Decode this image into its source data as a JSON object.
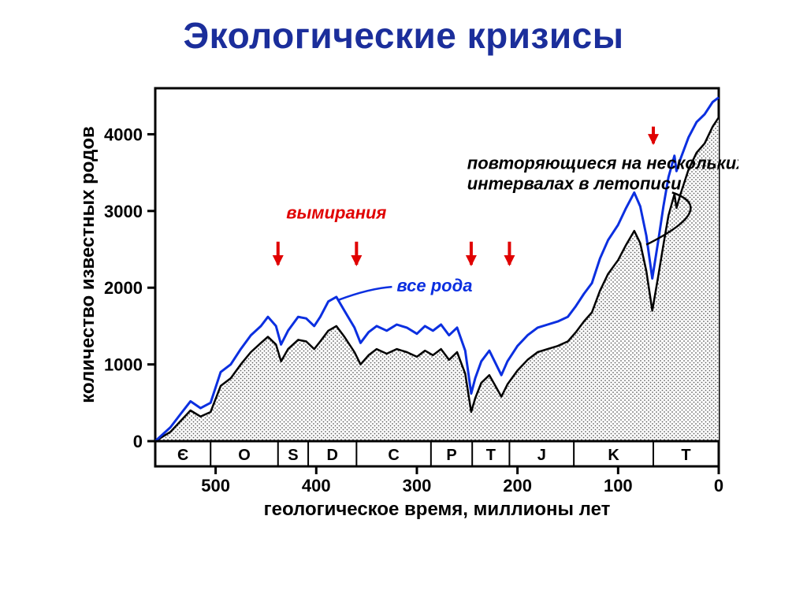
{
  "title": "Экологические кризисы",
  "axes": {
    "x_label": "геологическое время, миллионы лет",
    "y_label": "количество известных родов",
    "x_ticks": [
      500,
      400,
      300,
      200,
      100,
      0
    ],
    "y_ticks": [
      0,
      1000,
      2000,
      3000,
      4000
    ],
    "x_domain_min": 560,
    "x_domain_max": 0,
    "y_domain_min": 0,
    "y_domain_max": 4600,
    "axis_color": "#000000",
    "axis_line_width": 3
  },
  "periods": [
    {
      "label": "Є",
      "start": 560,
      "end": 505
    },
    {
      "label": "O",
      "start": 505,
      "end": 438
    },
    {
      "label": "S",
      "start": 438,
      "end": 408
    },
    {
      "label": "D",
      "start": 408,
      "end": 360
    },
    {
      "label": "C",
      "start": 360,
      "end": 286
    },
    {
      "label": "P",
      "start": 286,
      "end": 245
    },
    {
      "label": "T",
      "start": 245,
      "end": 208
    },
    {
      "label": "J",
      "start": 208,
      "end": 144
    },
    {
      "label": "K",
      "start": 144,
      "end": 65
    },
    {
      "label": "T",
      "start": 65,
      "end": 0
    }
  ],
  "series_all": {
    "label": "все рода",
    "color": "#0b2fe0",
    "line_width": 3,
    "points": [
      [
        560,
        0
      ],
      [
        545,
        180
      ],
      [
        535,
        350
      ],
      [
        525,
        520
      ],
      [
        515,
        430
      ],
      [
        505,
        500
      ],
      [
        495,
        900
      ],
      [
        485,
        1000
      ],
      [
        475,
        1200
      ],
      [
        465,
        1380
      ],
      [
        455,
        1500
      ],
      [
        448,
        1620
      ],
      [
        440,
        1500
      ],
      [
        435,
        1260
      ],
      [
        428,
        1440
      ],
      [
        418,
        1620
      ],
      [
        410,
        1600
      ],
      [
        402,
        1500
      ],
      [
        396,
        1620
      ],
      [
        388,
        1820
      ],
      [
        380,
        1880
      ],
      [
        372,
        1700
      ],
      [
        362,
        1480
      ],
      [
        356,
        1280
      ],
      [
        348,
        1420
      ],
      [
        340,
        1500
      ],
      [
        330,
        1440
      ],
      [
        320,
        1520
      ],
      [
        310,
        1480
      ],
      [
        300,
        1400
      ],
      [
        292,
        1500
      ],
      [
        284,
        1440
      ],
      [
        276,
        1520
      ],
      [
        268,
        1380
      ],
      [
        260,
        1480
      ],
      [
        252,
        1180
      ],
      [
        246,
        620
      ],
      [
        242,
        820
      ],
      [
        236,
        1040
      ],
      [
        228,
        1180
      ],
      [
        222,
        1020
      ],
      [
        216,
        860
      ],
      [
        210,
        1040
      ],
      [
        200,
        1240
      ],
      [
        190,
        1380
      ],
      [
        180,
        1480
      ],
      [
        170,
        1520
      ],
      [
        160,
        1560
      ],
      [
        150,
        1620
      ],
      [
        142,
        1760
      ],
      [
        134,
        1920
      ],
      [
        126,
        2060
      ],
      [
        118,
        2380
      ],
      [
        110,
        2620
      ],
      [
        100,
        2820
      ],
      [
        92,
        3040
      ],
      [
        84,
        3240
      ],
      [
        78,
        3060
      ],
      [
        72,
        2680
      ],
      [
        66,
        2120
      ],
      [
        60,
        2620
      ],
      [
        55,
        3060
      ],
      [
        50,
        3440
      ],
      [
        44,
        3720
      ],
      [
        42,
        3520
      ],
      [
        38,
        3680
      ],
      [
        30,
        3960
      ],
      [
        22,
        4160
      ],
      [
        14,
        4260
      ],
      [
        6,
        4420
      ],
      [
        0,
        4480
      ]
    ]
  },
  "series_repeat": {
    "label": "повторяющиеся на нескольких интервалах в летописи",
    "line_color": "#000000",
    "fill_pattern": "dots",
    "fill_fg": "#606060",
    "fill_bg": "#ffffff",
    "line_width": 2.5,
    "points": [
      [
        560,
        0
      ],
      [
        545,
        120
      ],
      [
        535,
        260
      ],
      [
        525,
        400
      ],
      [
        515,
        320
      ],
      [
        505,
        380
      ],
      [
        495,
        720
      ],
      [
        485,
        820
      ],
      [
        475,
        1000
      ],
      [
        465,
        1160
      ],
      [
        455,
        1280
      ],
      [
        448,
        1360
      ],
      [
        440,
        1260
      ],
      [
        435,
        1040
      ],
      [
        428,
        1200
      ],
      [
        418,
        1320
      ],
      [
        410,
        1300
      ],
      [
        402,
        1200
      ],
      [
        396,
        1300
      ],
      [
        388,
        1440
      ],
      [
        380,
        1500
      ],
      [
        372,
        1360
      ],
      [
        362,
        1160
      ],
      [
        356,
        1000
      ],
      [
        348,
        1120
      ],
      [
        340,
        1200
      ],
      [
        330,
        1140
      ],
      [
        320,
        1200
      ],
      [
        310,
        1160
      ],
      [
        300,
        1100
      ],
      [
        292,
        1180
      ],
      [
        284,
        1120
      ],
      [
        276,
        1200
      ],
      [
        268,
        1060
      ],
      [
        260,
        1160
      ],
      [
        252,
        880
      ],
      [
        246,
        380
      ],
      [
        242,
        560
      ],
      [
        236,
        760
      ],
      [
        228,
        860
      ],
      [
        222,
        720
      ],
      [
        216,
        580
      ],
      [
        210,
        740
      ],
      [
        200,
        920
      ],
      [
        190,
        1060
      ],
      [
        180,
        1160
      ],
      [
        170,
        1200
      ],
      [
        160,
        1240
      ],
      [
        150,
        1300
      ],
      [
        142,
        1420
      ],
      [
        134,
        1560
      ],
      [
        126,
        1680
      ],
      [
        118,
        1960
      ],
      [
        110,
        2180
      ],
      [
        100,
        2360
      ],
      [
        92,
        2560
      ],
      [
        84,
        2740
      ],
      [
        78,
        2580
      ],
      [
        72,
        2220
      ],
      [
        66,
        1700
      ],
      [
        60,
        2160
      ],
      [
        55,
        2560
      ],
      [
        50,
        2940
      ],
      [
        44,
        3220
      ],
      [
        42,
        3040
      ],
      [
        38,
        3220
      ],
      [
        30,
        3540
      ],
      [
        22,
        3760
      ],
      [
        14,
        3880
      ],
      [
        6,
        4100
      ],
      [
        0,
        4220
      ]
    ]
  },
  "extinction_arrows": {
    "label": "вымирания",
    "label_color": "#e00000",
    "arrow_color": "#e00000",
    "arrow_length_y": 300,
    "y_level": 2600,
    "x_positions_ma": [
      438,
      360,
      246,
      208,
      65
    ]
  },
  "callouts": {
    "all_genera_text_color": "#0b2fe0",
    "all_genera_x_ma": 320,
    "all_genera_y_val": 1950,
    "repeating_text_color": "#000000",
    "repeating_x_ma": 250,
    "repeating_y_val": 3550
  }
}
